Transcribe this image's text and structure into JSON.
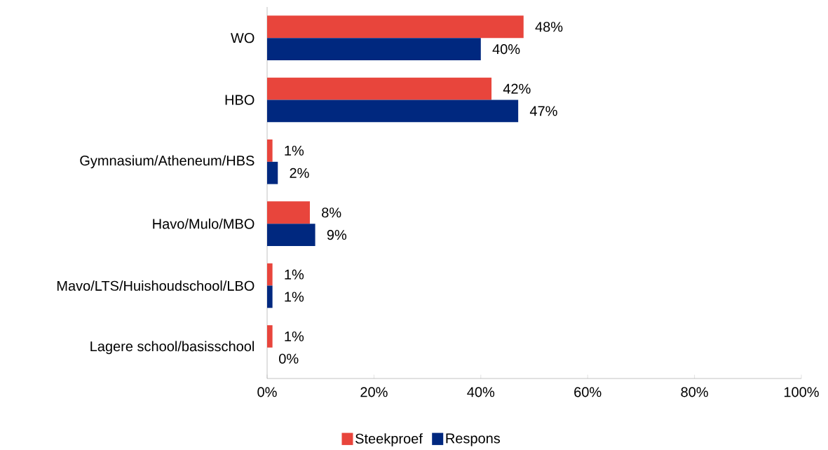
{
  "chart_data": {
    "type": "bar",
    "orientation": "horizontal",
    "categories": [
      "WO",
      "HBO",
      "Gymnasium/Atheneum/HBS",
      "Havo/Mulo/MBO",
      "Mavo/LTS/Huishoudschool/LBO",
      "Lagere school/basisschool"
    ],
    "series": [
      {
        "name": "Steekproef",
        "color": "#e8453c",
        "values": [
          48,
          42,
          1,
          8,
          1,
          1
        ],
        "value_labels": [
          "48%",
          "42%",
          "1%",
          "8%",
          "1%",
          "1%"
        ]
      },
      {
        "name": "Respons",
        "color": "#00287f",
        "values": [
          40,
          47,
          2,
          9,
          1,
          0
        ],
        "value_labels": [
          "40%",
          "47%",
          "2%",
          "9%",
          "1%",
          "0%"
        ]
      }
    ],
    "xlim": [
      0,
      100
    ],
    "xticks": [
      {
        "value": 0,
        "label": "0%"
      },
      {
        "value": 20,
        "label": "20%"
      },
      {
        "value": 40,
        "label": "40%"
      },
      {
        "value": 60,
        "label": "60%"
      },
      {
        "value": 80,
        "label": "80%"
      },
      {
        "value": 100,
        "label": "100%"
      }
    ],
    "grid": false,
    "legend": "bottom"
  }
}
